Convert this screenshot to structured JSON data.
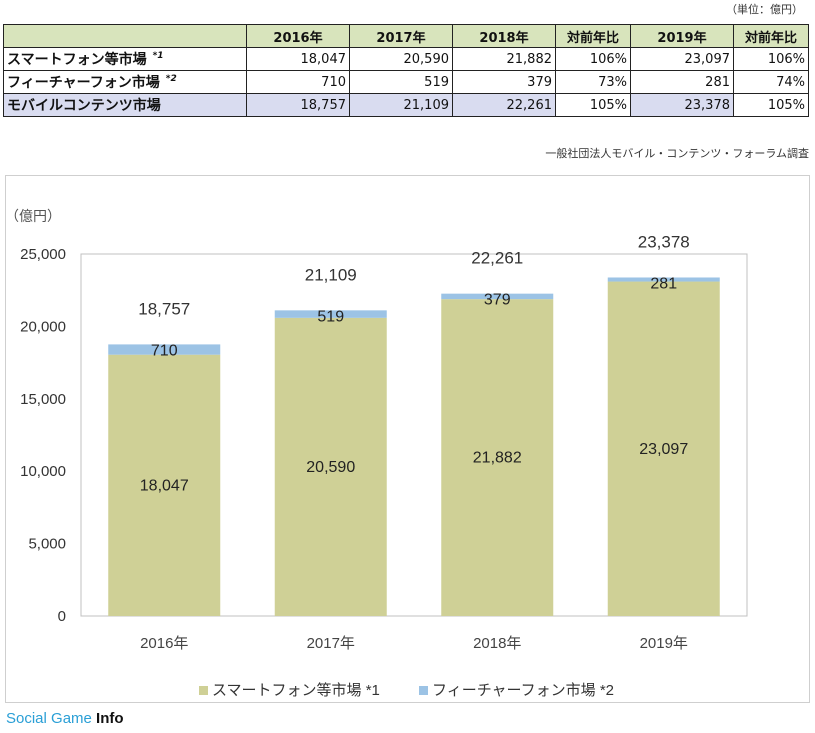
{
  "unit_note": "（単位：億円）",
  "table": {
    "columns": [
      "",
      "2016年",
      "2017年",
      "2018年",
      "対前年比",
      "2019年",
      "対前年比"
    ],
    "rows": [
      {
        "label": "スマートフォン等市場",
        "mark": "*1",
        "cells": [
          "18,047",
          "20,590",
          "21,882",
          "106%",
          "23,097",
          "106%"
        ]
      },
      {
        "label": "フィーチャーフォン市場",
        "mark": "*2",
        "cells": [
          "710",
          "519",
          "379",
          "73%",
          "281",
          "74%"
        ]
      },
      {
        "label": "モバイルコンテンツ市場",
        "mark": "",
        "cells": [
          "18,757",
          "21,109",
          "22,261",
          "105%",
          "23,378",
          "105%"
        ]
      }
    ]
  },
  "source": "一般社団法人モバイル・コンテンツ・フォーラム調査",
  "colors": {
    "smartphone": "#cfd096",
    "featurephone": "#9cc3e5",
    "plot_border": "#c0c0c0",
    "header_bg": "#d8e4bc",
    "total_bg": "#d9dcf0"
  },
  "chart_data": {
    "type": "bar",
    "stacked": true,
    "ylabel": "（億円）",
    "categories": [
      "2016年",
      "2017年",
      "2018年",
      "2019年"
    ],
    "series": [
      {
        "name": "スマートフォン等市場 *1",
        "values": [
          18047,
          20590,
          21882,
          23097
        ],
        "labels": [
          "18,047",
          "20,590",
          "21,882",
          "23,097"
        ]
      },
      {
        "name": "フィーチャーフォン市場 *2",
        "values": [
          710,
          519,
          379,
          281
        ],
        "labels": [
          "710",
          "519",
          "379",
          "281"
        ]
      }
    ],
    "totals": [
      "18,757",
      "21,109",
      "22,261",
      "23,378"
    ],
    "ylim": [
      0,
      25000
    ],
    "yticks": [
      "0",
      "5,000",
      "10,000",
      "15,000",
      "20,000",
      "25,000"
    ],
    "grid": false,
    "legend": "bottom"
  },
  "brand": {
    "part1": "Social Game ",
    "part2": "Info"
  }
}
